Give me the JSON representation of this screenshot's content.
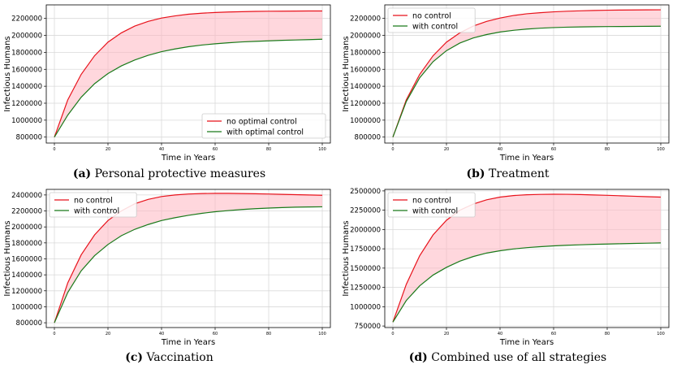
{
  "chart_data": [
    {
      "type": "area",
      "caption_label": "(a)",
      "caption_text": "Personal protective measures",
      "xlabel": "Time in Years",
      "ylabel": "Infectious Humans",
      "xticks": [
        0,
        20,
        40,
        60,
        80,
        100
      ],
      "yticks": [
        800000,
        1000000,
        1200000,
        1400000,
        1600000,
        1800000,
        2000000,
        2200000
      ],
      "xlim": [
        0,
        100
      ],
      "ylim": [
        730000,
        2360000
      ],
      "legend_position": "lower-right",
      "x": [
        0,
        5,
        10,
        15,
        20,
        25,
        30,
        35,
        40,
        45,
        50,
        55,
        60,
        65,
        70,
        75,
        80,
        85,
        90,
        95,
        100
      ],
      "series": [
        {
          "name": "no optimal control",
          "color": "#e8121b",
          "values": [
            800000,
            1240000,
            1540000,
            1760000,
            1920000,
            2030000,
            2110000,
            2165000,
            2205000,
            2230000,
            2250000,
            2262000,
            2270000,
            2276000,
            2280000,
            2283000,
            2285000,
            2286000,
            2287000,
            2288000,
            2288000
          ]
        },
        {
          "name": "with optimal control",
          "color": "#1a7a1a",
          "values": [
            800000,
            1060000,
            1270000,
            1430000,
            1550000,
            1640000,
            1710000,
            1765000,
            1808000,
            1840000,
            1866000,
            1886000,
            1901000,
            1913000,
            1923000,
            1930000,
            1936000,
            1942000,
            1946000,
            1950000,
            1955000
          ]
        }
      ]
    },
    {
      "type": "area",
      "caption_label": "(b)",
      "caption_text": "Treatment",
      "xlabel": "Time in Years",
      "ylabel": "Infectious Humans",
      "xticks": [
        0,
        20,
        40,
        60,
        80,
        100
      ],
      "yticks": [
        800000,
        1000000,
        1200000,
        1400000,
        1600000,
        1800000,
        2000000,
        2200000
      ],
      "xlim": [
        0,
        100
      ],
      "ylim": [
        730000,
        2360000
      ],
      "legend_position": "upper-left",
      "x": [
        0,
        5,
        10,
        15,
        20,
        25,
        30,
        35,
        40,
        45,
        50,
        55,
        60,
        65,
        70,
        75,
        80,
        85,
        90,
        95,
        100
      ],
      "series": [
        {
          "name": "no control",
          "color": "#e8121b",
          "values": [
            800000,
            1240000,
            1540000,
            1760000,
            1920000,
            2030000,
            2110000,
            2165000,
            2205000,
            2235000,
            2255000,
            2268000,
            2278000,
            2285000,
            2290000,
            2294000,
            2297000,
            2299000,
            2300000,
            2301000,
            2302000
          ]
        },
        {
          "name": "with control",
          "color": "#1a7a1a",
          "values": [
            800000,
            1220000,
            1500000,
            1690000,
            1820000,
            1910000,
            1970000,
            2010000,
            2040000,
            2060000,
            2075000,
            2085000,
            2092000,
            2097000,
            2100000,
            2102000,
            2104000,
            2105000,
            2106000,
            2107000,
            2108000
          ]
        }
      ]
    },
    {
      "type": "area",
      "caption_label": "(c)",
      "caption_text": "Vaccination",
      "xlabel": "Time in Years",
      "ylabel": "Infectious Humans",
      "xticks": [
        0,
        20,
        40,
        60,
        80,
        100
      ],
      "yticks": [
        800000,
        1000000,
        1200000,
        1400000,
        1600000,
        1800000,
        2000000,
        2200000,
        2400000
      ],
      "xlim": [
        0,
        100
      ],
      "ylim": [
        740000,
        2470000
      ],
      "legend_position": "upper-left",
      "x": [
        0,
        5,
        10,
        15,
        20,
        25,
        30,
        35,
        40,
        45,
        50,
        55,
        60,
        65,
        70,
        75,
        80,
        85,
        90,
        95,
        100
      ],
      "series": [
        {
          "name": "no control",
          "color": "#e8121b",
          "values": [
            800000,
            1300000,
            1650000,
            1900000,
            2080000,
            2200000,
            2290000,
            2345000,
            2380000,
            2400000,
            2412000,
            2418000,
            2420000,
            2420000,
            2418000,
            2415000,
            2412000,
            2408000,
            2404000,
            2400000,
            2396000
          ]
        },
        {
          "name": "with control",
          "color": "#1a7a1a",
          "values": [
            800000,
            1180000,
            1450000,
            1640000,
            1780000,
            1890000,
            1970000,
            2030000,
            2080000,
            2115000,
            2145000,
            2170000,
            2190000,
            2205000,
            2218000,
            2228000,
            2236000,
            2242000,
            2247000,
            2250000,
            2252000
          ]
        }
      ]
    },
    {
      "type": "area",
      "caption_label": "(d)",
      "caption_text": "Combined use of all strategies",
      "xlabel": "Time in Years",
      "ylabel": "Infectious Humans",
      "xticks": [
        0,
        20,
        40,
        60,
        80,
        100
      ],
      "yticks": [
        750000,
        1000000,
        1250000,
        1500000,
        1750000,
        2000000,
        2250000,
        2500000
      ],
      "xlim": [
        0,
        100
      ],
      "ylim": [
        730000,
        2520000
      ],
      "legend_position": "upper-left",
      "x": [
        0,
        5,
        10,
        15,
        20,
        25,
        30,
        35,
        40,
        45,
        50,
        55,
        60,
        65,
        70,
        75,
        80,
        85,
        90,
        95,
        100
      ],
      "series": [
        {
          "name": "no control",
          "color": "#e8121b",
          "values": [
            800000,
            1290000,
            1660000,
            1930000,
            2120000,
            2250000,
            2330000,
            2385000,
            2420000,
            2440000,
            2450000,
            2455000,
            2457000,
            2456000,
            2453000,
            2448000,
            2443000,
            2437000,
            2431000,
            2425000,
            2420000
          ]
        },
        {
          "name": "with control",
          "color": "#1a7a1a",
          "values": [
            800000,
            1080000,
            1270000,
            1410000,
            1510000,
            1590000,
            1650000,
            1695000,
            1725000,
            1748000,
            1765000,
            1778000,
            1788000,
            1796000,
            1802000,
            1808000,
            1812000,
            1816000,
            1820000,
            1823000,
            1826000
          ]
        }
      ]
    }
  ]
}
